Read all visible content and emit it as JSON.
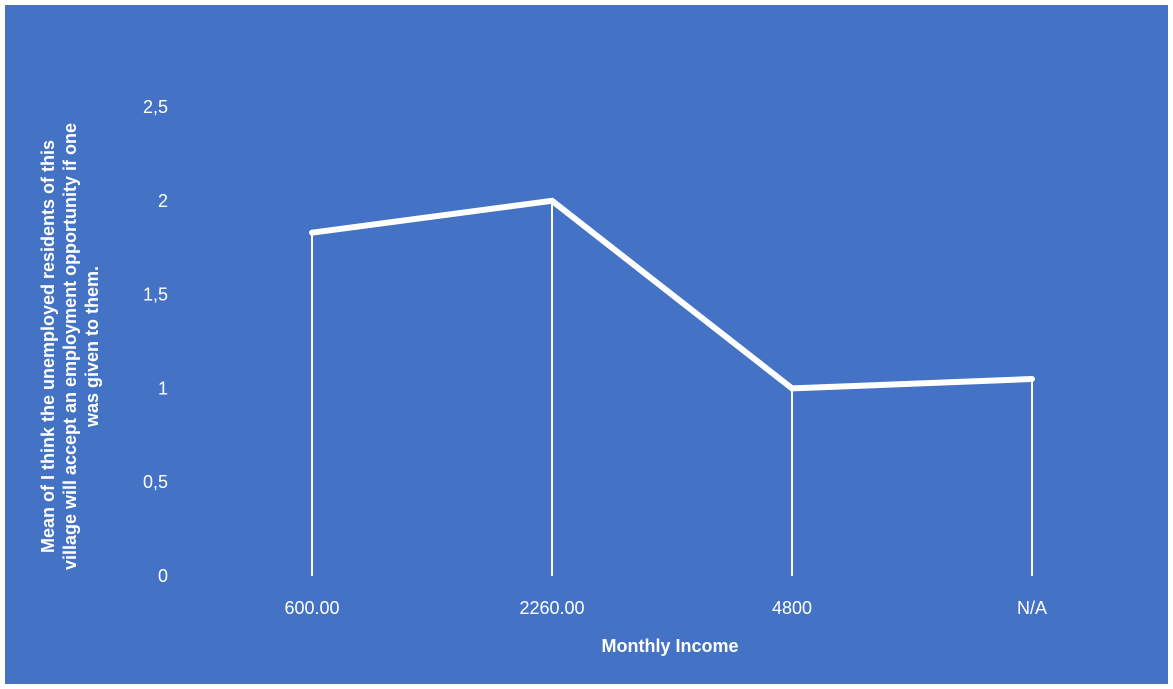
{
  "chart_data": {
    "type": "line",
    "title": "",
    "xlabel": "Monthly Income",
    "ylabel": "Mean of I think the unemployed residents of this village will accept an employment opportunity if one was given to them.",
    "ylabel_lines": [
      "Mean of I think the unemployed residents of this",
      "village will accept an employment opportunity if one",
      "was given to them."
    ],
    "categories": [
      "600.00",
      "2260.00",
      "4800",
      "N/A"
    ],
    "series": [
      {
        "values": [
          1.83,
          2.0,
          1.0,
          1.05
        ]
      }
    ],
    "ylim": [
      0,
      2.5
    ],
    "yticks": [
      0,
      0.5,
      1,
      1.5,
      2,
      2.5
    ],
    "ytick_labels": [
      "0",
      "0,5",
      "1",
      "1,5",
      "2",
      "2,5"
    ],
    "drop_lines": true,
    "grid": false,
    "legend": "none",
    "colors": {
      "background": "#4472C4",
      "line": "#FFFFFF",
      "text": "#FFFFFF"
    }
  }
}
